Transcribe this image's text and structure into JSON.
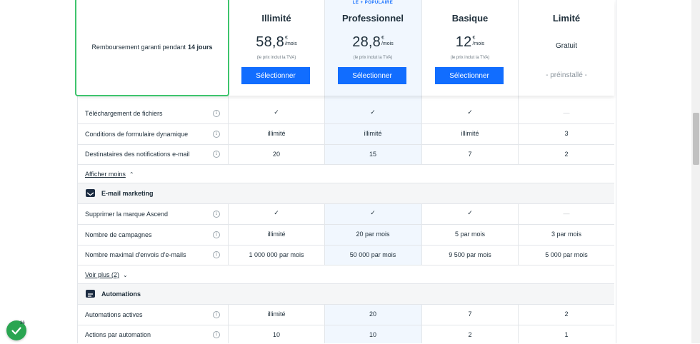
{
  "guarantee": {
    "text": "Remboursement garanti pendant",
    "bold": "14 jours"
  },
  "popular_badge": "LE + POPULAIRE",
  "plans": [
    {
      "name": "Illimité",
      "price": "58,8",
      "currency": "€",
      "period": "/mois",
      "vat": "(le prix inclut la TVA)",
      "button": "Sélectionner"
    },
    {
      "name": "Professionnel",
      "price": "28,8",
      "currency": "€",
      "period": "/mois",
      "vat": "(le prix inclut la TVA)",
      "button": "Sélectionner"
    },
    {
      "name": "Basique",
      "price": "12",
      "currency": "€",
      "period": "/mois",
      "vat": "(le prix inclut la TVA)",
      "button": "Sélectionner"
    },
    {
      "name": "Limité",
      "price_text": "Gratuit",
      "note": "- préinstallé -"
    }
  ],
  "forms_rows": [
    {
      "label": "Téléchargement de fichiers",
      "values": [
        "✓",
        "✓",
        "✓",
        "—"
      ]
    },
    {
      "label": "Conditions de formulaire dynamique",
      "values": [
        "illimité",
        "illimité",
        "illimité",
        "3"
      ]
    },
    {
      "label": "Destinataires des notifications e-mail",
      "values": [
        "20",
        "15",
        "7",
        "2"
      ]
    }
  ],
  "show_less": "Afficher moins",
  "email_section": {
    "title": "E-mail marketing",
    "icon": "envelope-icon"
  },
  "email_rows": [
    {
      "label": "Supprimer la marque Ascend",
      "values": [
        "✓",
        "✓",
        "✓",
        "—"
      ]
    },
    {
      "label": "Nombre de campagnes",
      "values": [
        "illimité",
        "20 par mois",
        "5 par mois",
        "3 par mois"
      ]
    },
    {
      "label": "Nombre maximal d'envois d'e-mails",
      "values": [
        "1 000 000 par mois",
        "50 000 par mois",
        "9 500 par mois",
        "5 000 par mois"
      ]
    }
  ],
  "see_more": "Voir plus (2)",
  "automation_section": {
    "title": "Automations",
    "icon": "chat-icon"
  },
  "automation_rows": [
    {
      "label": "Automations actives",
      "values": [
        "illimité",
        "20",
        "7",
        "2"
      ]
    },
    {
      "label": "Actions par automation",
      "values": [
        "10",
        "10",
        "2",
        "1"
      ]
    }
  ],
  "info_glyph": "i",
  "notification_count": "36",
  "colors": {
    "accent": "#116dff",
    "highlight": "#f1f7fe",
    "guarantee_border": "#3ec46d",
    "badge": "#2aa551"
  }
}
